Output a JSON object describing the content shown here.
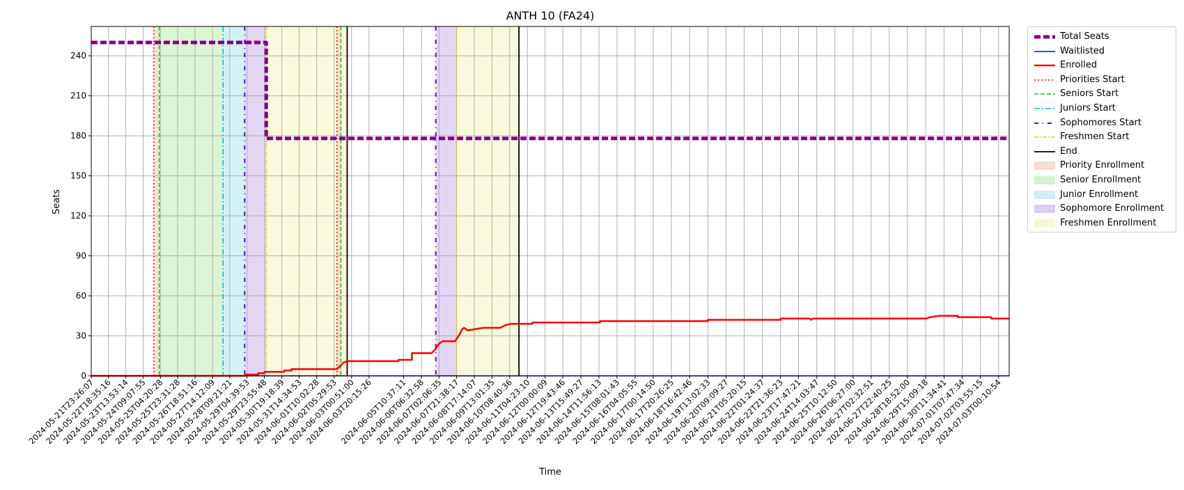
{
  "chart_data": {
    "type": "line",
    "title": "ANTH 10 (FA24)",
    "xlabel": "Time",
    "ylabel": "Seats",
    "ylim": [
      0,
      262
    ],
    "yticks": [
      0,
      30,
      60,
      90,
      120,
      150,
      180,
      210,
      240
    ],
    "grid": true,
    "legend_position": "outside-right",
    "x_tick_labels": [
      "2024-05-21T23:26:07",
      "2024-05-22T18:35:16",
      "2024-05-23T13:53:14",
      "2024-05-24T09:07:55",
      "2024-05-25T04:20:28",
      "2024-05-25T23:31:28",
      "2024-05-26T18:51:16",
      "2024-05-27T14:12:09",
      "2024-05-28T09:21:21",
      "2024-05-29T04:39:53",
      "2024-05-29T23:55:48",
      "2024-05-30T19:18:39",
      "2024-05-31T14:34:53",
      "2024-06-01T10:02:28",
      "2024-06-02T05:29:53",
      "2024-06-03T00:51:00",
      "2024-06-03T20:15:26",
      "2024-06-05T10:37:11",
      "2024-06-06T06:32:58",
      "2024-06-07T02:06:35",
      "2024-06-07T21:38:17",
      "2024-06-08T17:14:07",
      "2024-06-09T13:01:35",
      "2024-06-10T08:40:36",
      "2024-06-11T04:23:10",
      "2024-06-12T00:00:09",
      "2024-06-12T19:43:46",
      "2024-06-13T15:49:27",
      "2024-06-14T11:56:13",
      "2024-06-15T08:01:43",
      "2024-06-16T04:05:55",
      "2024-06-17T00:14:50",
      "2024-06-17T20:26:25",
      "2024-06-18T16:42:46",
      "2024-06-19T13:02:33",
      "2024-06-20T09:09:27",
      "2024-06-21T05:20:15",
      "2024-06-22T01:24:37",
      "2024-06-22T21:36:23",
      "2024-06-23T17:47:21",
      "2024-06-24T14:03:47",
      "2024-06-25T10:12:50",
      "2024-06-26T06:27:00",
      "2024-06-27T02:32:51",
      "2024-06-27T22:40:25",
      "2024-06-28T18:52:00",
      "2024-06-29T15:09:18",
      "2024-06-30T11:34:41",
      "2024-07-01T07:47:34",
      "2024-07-02T03:55:15",
      "2024-07-03T00:10:54"
    ],
    "phases": [
      {
        "name": "Priority Enrollment",
        "start": "2024-05-24T21:00:00",
        "end": "2024-05-25T03:00:00",
        "color": "#f4c7b0"
      },
      {
        "name": "Senior Enrollment",
        "start": "2024-05-25T03:00:00",
        "end": "2024-05-28T02:00:00",
        "color": "#b7ecab"
      },
      {
        "name": "Junior Enrollment",
        "start": "2024-05-28T02:00:00",
        "end": "2024-05-29T02:00:00",
        "color": "#a8e6ec"
      },
      {
        "name": "Sophomore Enrollment",
        "start": "2024-05-29T02:00:00",
        "end": "2024-05-30T02:00:00",
        "color": "#c8aeec"
      },
      {
        "name": "Freshmen Enrollment",
        "start": "2024-05-30T02:00:00",
        "end": "2024-06-02T20:00:00",
        "color": "#f3f3b8"
      },
      {
        "name": "Priority Enrollment",
        "start": "2024-06-02T08:30:00",
        "end": "2024-06-02T13:00:00",
        "color": "#f4c7b0"
      },
      {
        "name": "Sophomore Enrollment",
        "start": "2024-06-06T22:30:00",
        "end": "2024-06-07T21:30:00",
        "color": "#c8aeec"
      },
      {
        "name": "Freshmen Enrollment",
        "start": "2024-06-07T21:30:00",
        "end": "2024-06-10T19:00:00",
        "color": "#f3f3b8"
      }
    ],
    "markers": [
      {
        "series": "Priorities Start",
        "x": "2024-05-24T21:00:00"
      },
      {
        "series": "Seniors Start",
        "x": "2024-05-25T03:00:00"
      },
      {
        "series": "Juniors Start",
        "x": "2024-05-28T02:00:00"
      },
      {
        "series": "Sophomores Start",
        "x": "2024-05-29T02:00:00"
      },
      {
        "series": "Freshmen Start",
        "x": "2024-05-30T02:00:00"
      },
      {
        "series": "End",
        "x": "2024-06-02T20:00:00"
      },
      {
        "series": "Priorities Start",
        "x": "2024-06-02T08:30:00"
      },
      {
        "series": "Seniors Start",
        "x": "2024-06-02T13:00:00"
      },
      {
        "series": "Sophomores Start",
        "x": "2024-06-06T22:30:00"
      },
      {
        "series": "Freshmen Start",
        "x": "2024-06-07T21:30:00"
      },
      {
        "series": "End",
        "x": "2024-06-10T19:00:00"
      }
    ],
    "series": [
      {
        "name": "Total Seats",
        "color": "#800080",
        "points": [
          [
            "2024-05-21T23:26:07",
            250
          ],
          [
            "2024-05-30T02:00:00",
            250
          ],
          [
            "2024-05-30T02:00:00",
            178
          ],
          [
            "2024-07-03T12:00:00",
            178
          ]
        ]
      },
      {
        "name": "Waitlisted",
        "color": "#0000ff",
        "points": [
          [
            "2024-05-21T23:26:07",
            0
          ],
          [
            "2024-07-03T12:00:00",
            0
          ]
        ]
      },
      {
        "name": "Enrolled",
        "color": "#ff0000",
        "points": [
          [
            "2024-05-21T23:26:07",
            0
          ],
          [
            "2024-05-29T03:00:00",
            0
          ],
          [
            "2024-05-29T03:00:00",
            1
          ],
          [
            "2024-05-29T17:00:00",
            1
          ],
          [
            "2024-05-29T17:00:00",
            2
          ],
          [
            "2024-05-30T00:00:00",
            2
          ],
          [
            "2024-05-30T00:00:00",
            3
          ],
          [
            "2024-05-30T22:00:00",
            3
          ],
          [
            "2024-05-30T22:00:00",
            4
          ],
          [
            "2024-05-31T06:00:00",
            4
          ],
          [
            "2024-05-31T06:00:00",
            5
          ],
          [
            "2024-06-02T08:00:00",
            5
          ],
          [
            "2024-06-02T10:00:00",
            6
          ],
          [
            "2024-06-02T13:00:00",
            8
          ],
          [
            "2024-06-02T16:00:00",
            10
          ],
          [
            "2024-06-02T20:00:00",
            11
          ],
          [
            "2024-06-05T05:00:00",
            11
          ],
          [
            "2024-06-05T05:00:00",
            12
          ],
          [
            "2024-06-05T20:00:00",
            12
          ],
          [
            "2024-06-05T20:00:00",
            17
          ],
          [
            "2024-06-06T18:00:00",
            17
          ],
          [
            "2024-06-06T22:00:00",
            20
          ],
          [
            "2024-06-07T02:00:00",
            24
          ],
          [
            "2024-06-07T06:00:00",
            26
          ],
          [
            "2024-06-07T20:00:00",
            26
          ],
          [
            "2024-06-08T00:00:00",
            30
          ],
          [
            "2024-06-08T04:00:00",
            35
          ],
          [
            "2024-06-08T06:00:00",
            36
          ],
          [
            "2024-06-08T10:00:00",
            34
          ],
          [
            "2024-06-08T18:00:00",
            35
          ],
          [
            "2024-06-09T04:00:00",
            36
          ],
          [
            "2024-06-09T22:00:00",
            36
          ],
          [
            "2024-06-10T04:00:00",
            38
          ],
          [
            "2024-06-10T10:00:00",
            39
          ],
          [
            "2024-06-11T10:00:00",
            39
          ],
          [
            "2024-06-11T10:00:00",
            40
          ],
          [
            "2024-06-14T13:00:00",
            40
          ],
          [
            "2024-06-14T13:00:00",
            41
          ],
          [
            "2024-06-19T13:00:00",
            41
          ],
          [
            "2024-06-19T13:00:00",
            42
          ],
          [
            "2024-06-22T22:00:00",
            42
          ],
          [
            "2024-06-22T22:00:00",
            43
          ],
          [
            "2024-06-24T06:00:00",
            43
          ],
          [
            "2024-06-24T08:00:00",
            42
          ],
          [
            "2024-06-24T10:00:00",
            43
          ],
          [
            "2024-06-29T16:00:00",
            43
          ],
          [
            "2024-06-29T20:00:00",
            44
          ],
          [
            "2024-06-30T06:00:00",
            45
          ],
          [
            "2024-07-01T03:00:00",
            45
          ],
          [
            "2024-07-01T03:00:00",
            44
          ],
          [
            "2024-07-02T16:00:00",
            44
          ],
          [
            "2024-07-02T16:00:00",
            43
          ],
          [
            "2024-07-03T12:00:00",
            43
          ]
        ]
      }
    ],
    "legend": [
      {
        "label": "Total Seats",
        "kind": "line",
        "color": "#800080",
        "dash": "9,4",
        "width": 5
      },
      {
        "label": "Waitlisted",
        "kind": "line",
        "color": "#0000ff",
        "dash": "",
        "width": 1.5
      },
      {
        "label": "Enrolled",
        "kind": "line",
        "color": "#ff0000",
        "dash": "",
        "width": 2.5
      },
      {
        "label": "Priorities Start",
        "kind": "line",
        "color": "#ff0000",
        "dash": "2,3",
        "width": 1.5
      },
      {
        "label": "Seniors Start",
        "kind": "line",
        "color": "#22bb22",
        "dash": "6,3",
        "width": 1.5
      },
      {
        "label": "Juniors Start",
        "kind": "line",
        "color": "#00bfbf",
        "dash": "8,3,2,3",
        "width": 1.5
      },
      {
        "label": "Sophomores Start",
        "kind": "line",
        "color": "#6a00d6",
        "dash": "6,6,1,6",
        "width": 2
      },
      {
        "label": "Freshmen Start",
        "kind": "line",
        "color": "#d6d600",
        "dash": "6,2,2,2",
        "width": 1.5
      },
      {
        "label": "End",
        "kind": "line",
        "color": "#000000",
        "dash": "",
        "width": 1.8
      },
      {
        "label": "Priority Enrollment",
        "kind": "patch",
        "color": "#f4c7b0"
      },
      {
        "label": "Senior Enrollment",
        "kind": "patch",
        "color": "#b7ecab"
      },
      {
        "label": "Junior Enrollment",
        "kind": "patch",
        "color": "#a8e6ec"
      },
      {
        "label": "Sophomore Enrollment",
        "kind": "patch",
        "color": "#c8aeec"
      },
      {
        "label": "Freshmen Enrollment",
        "kind": "patch",
        "color": "#f3f3b8"
      }
    ]
  }
}
